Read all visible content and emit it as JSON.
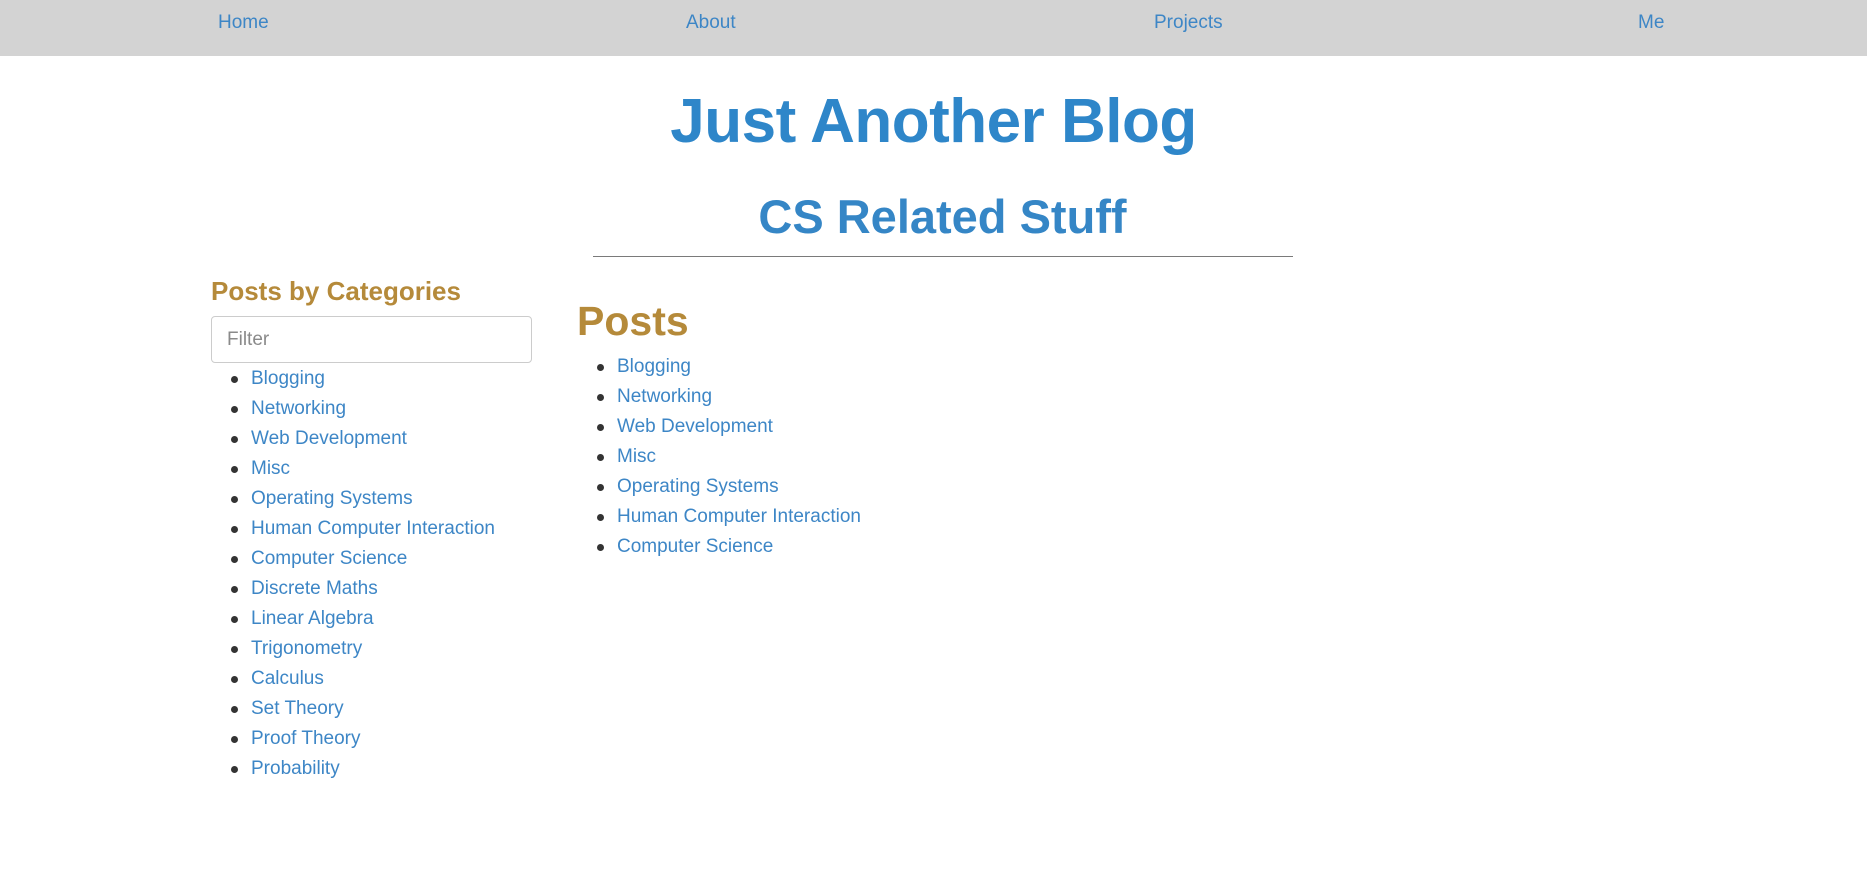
{
  "nav": {
    "home": "Home",
    "about": "About",
    "projects": "Projects",
    "me": "Me"
  },
  "header": {
    "title": "Just Another Blog",
    "subtitle": "CS Related Stuff"
  },
  "sidebar": {
    "heading": "Posts by Categories",
    "filter_placeholder": "Filter",
    "filter_value": "",
    "categories": [
      "Blogging",
      "Networking",
      "Web Development",
      "Misc",
      "Operating Systems",
      "Human Computer Interaction",
      "Computer Science",
      "Discrete Maths",
      "Linear Algebra",
      "Trigonometry",
      "Calculus",
      "Set Theory",
      "Proof Theory",
      "Probability"
    ]
  },
  "main": {
    "heading": "Posts",
    "posts": [
      "Blogging",
      "Networking",
      "Web Development",
      "Misc",
      "Operating Systems",
      "Human Computer Interaction",
      "Computer Science"
    ]
  },
  "colors": {
    "nav_background": "#d3d3d3",
    "link": "#3d86c6",
    "title": "#2e86c9",
    "section_heading": "#b58a3a",
    "rule": "#7a7a7a"
  }
}
